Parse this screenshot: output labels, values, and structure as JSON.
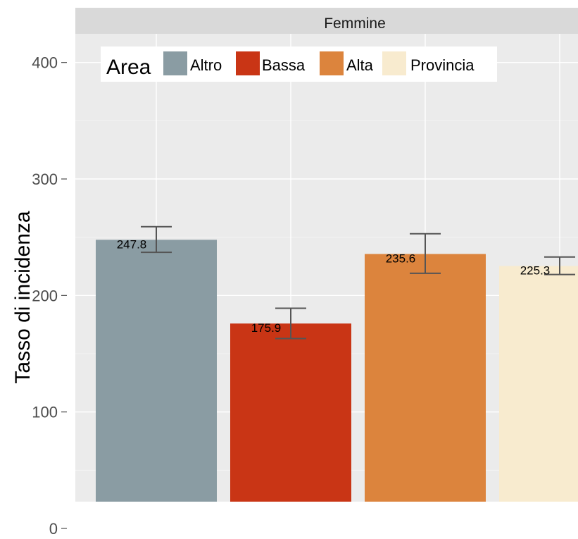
{
  "chart_data": {
    "type": "bar",
    "facet_label": "Femmine",
    "ylabel": "Tasso di incidenza",
    "xlabel": "",
    "ylim": [
      0,
      420
    ],
    "y_ticks": [
      0,
      100,
      200,
      300,
      400
    ],
    "grid": true,
    "legend_title": "Area",
    "legend_position": "top-left inside",
    "categories": [
      "Altro",
      "Bassa",
      "Alta",
      "Provincia"
    ],
    "colors": [
      "#8a9ca3",
      "#c93515",
      "#dc843d",
      "#f8ebcf"
    ],
    "values": [
      247.8,
      175.9,
      235.6,
      225.3
    ],
    "value_labels": [
      "247.8",
      "175.9",
      "235.6",
      "225.3"
    ],
    "error_low": [
      237,
      163,
      219,
      218
    ],
    "error_high": [
      259,
      189,
      253,
      233
    ]
  }
}
